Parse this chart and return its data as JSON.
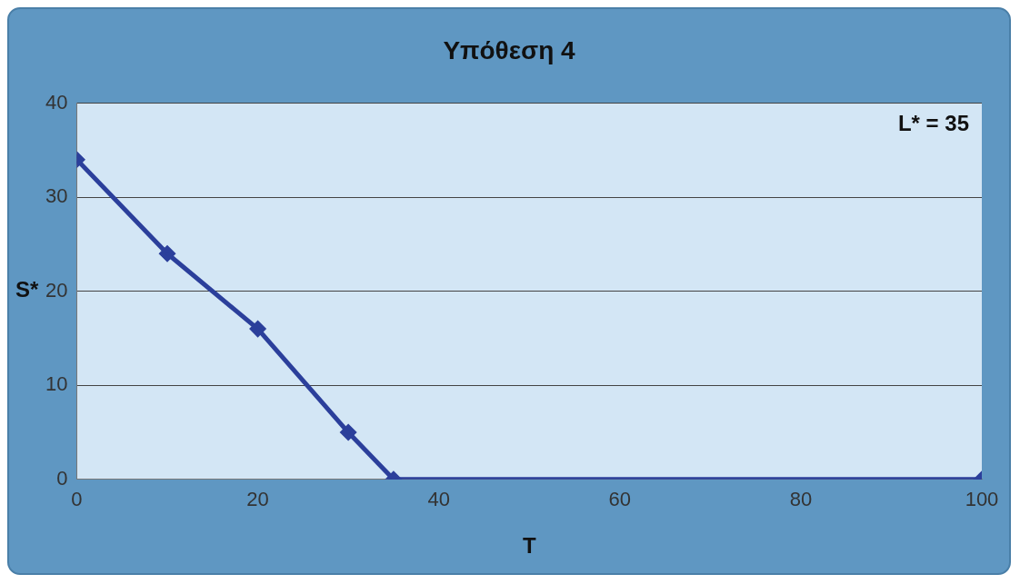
{
  "chart_data": {
    "type": "line",
    "title": "Υπόθεση 4",
    "xlabel": "T",
    "ylabel": "S*",
    "annotations": [
      "L* = 35"
    ],
    "series": [
      {
        "color": "#2b3f9b",
        "x": [
          0,
          10,
          20,
          30,
          35,
          100
        ],
        "values": [
          34,
          24,
          16,
          5,
          0,
          0
        ]
      }
    ],
    "xlim": [
      0,
      100
    ],
    "xticks": [
      0,
      20,
      40,
      60,
      80,
      100
    ],
    "ylim": [
      0,
      40
    ],
    "yticks": [
      0,
      10,
      20,
      30,
      40
    ],
    "grid": "y",
    "legend": false,
    "marker": "diamond",
    "line_style": "solid"
  }
}
